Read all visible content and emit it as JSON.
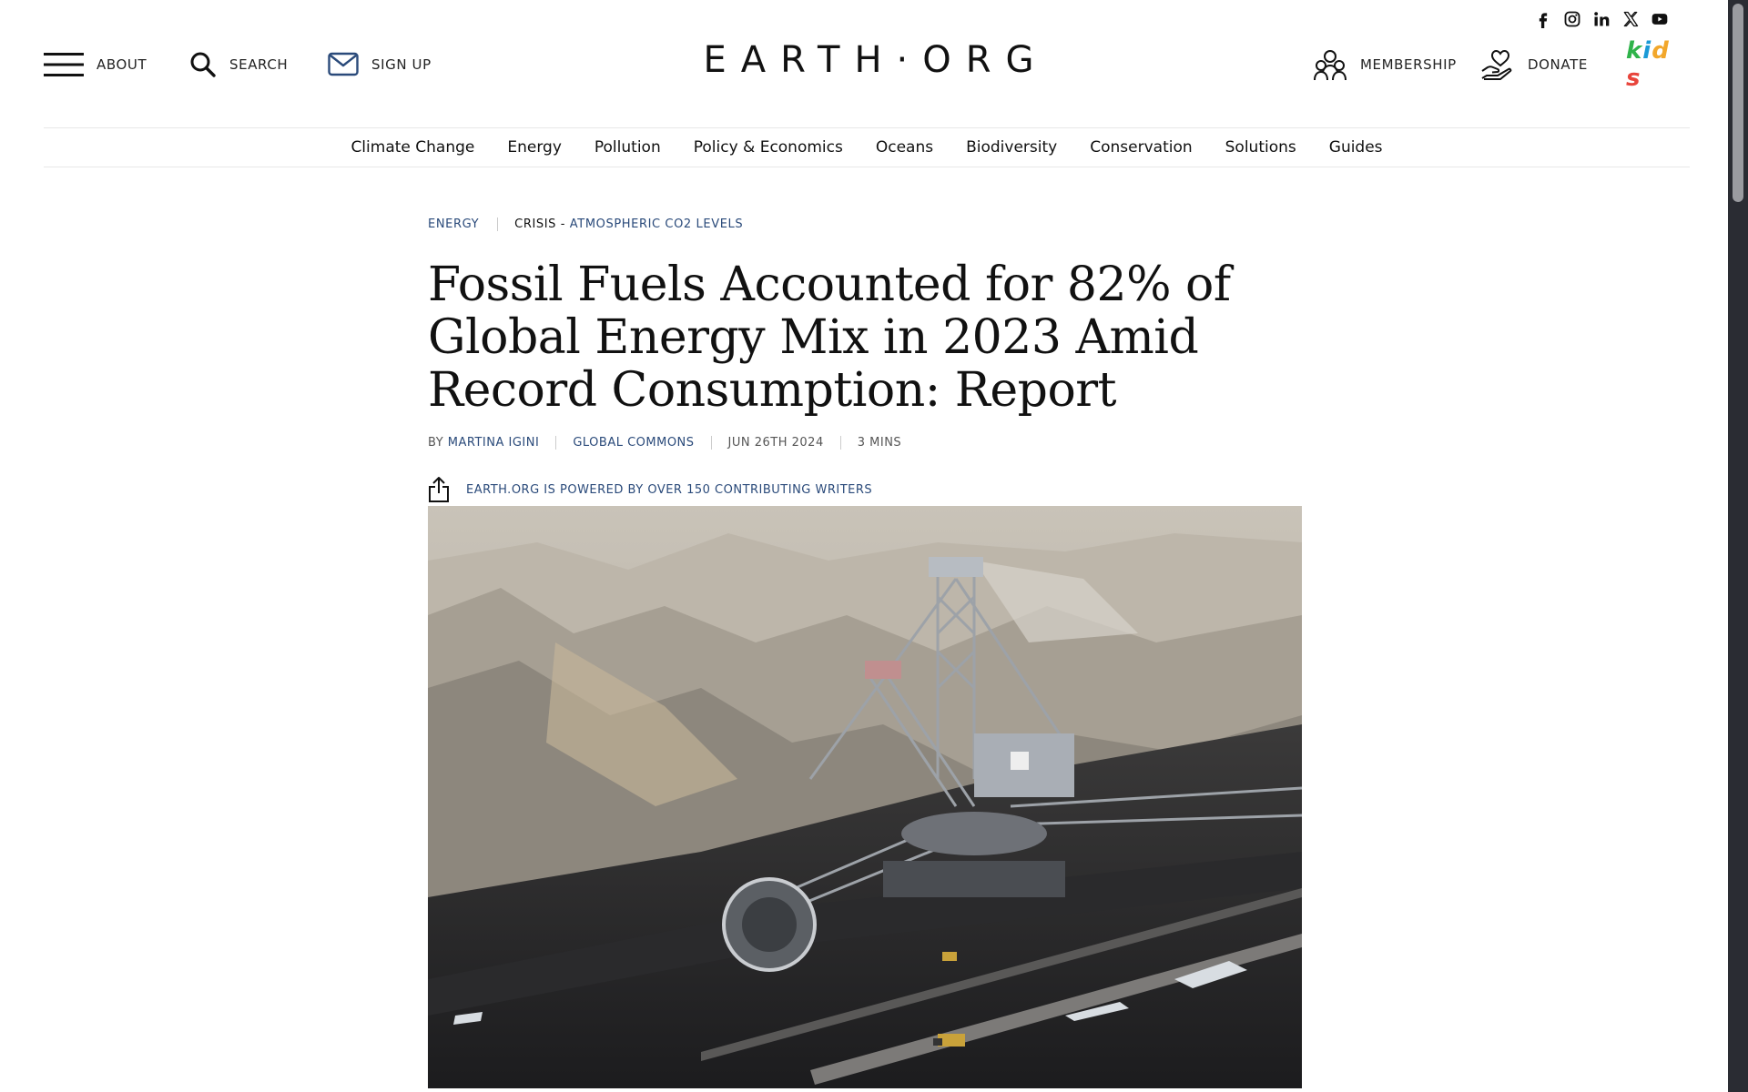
{
  "site": {
    "logo": "EARTH·ORG"
  },
  "header": {
    "about_label": "ABOUT",
    "search_label": "SEARCH",
    "signup_label": "SIGN UP",
    "membership_label": "MEMBERSHIP",
    "donate_label": "DONATE",
    "kids_label": [
      "k",
      "i",
      "d",
      "s"
    ],
    "kids_colors": [
      "#2fb34a",
      "#1a9ad6",
      "#f2a72b",
      "#e8453c"
    ]
  },
  "social": [
    "facebook-icon",
    "instagram-icon",
    "linkedin-icon",
    "x-icon",
    "youtube-icon"
  ],
  "nav": {
    "items": [
      "Climate Change",
      "Energy",
      "Pollution",
      "Policy & Economics",
      "Oceans",
      "Biodiversity",
      "Conservation",
      "Solutions",
      "Guides"
    ]
  },
  "article": {
    "category": "ENERGY",
    "crisis_prefix": "CRISIS - ",
    "crisis": "ATMOSPHERIC CO2 LEVELS",
    "title": "Fossil Fuels Accounted for 82% of Global Energy Mix in 2023 Amid Record Consumption: Report",
    "by_prefix": "BY ",
    "author": "MARTINA IGINI",
    "section": "GLOBAL COMMONS",
    "date": "JUN 26TH 2024",
    "read_time": "3 MINS",
    "powered_text": "EARTH.ORG IS POWERED BY OVER 150 CONTRIBUTING WRITERS"
  },
  "colors": {
    "accent_blue": "#2a4a7a",
    "text": "#111111",
    "scrollbar_track": "#2a2c33"
  }
}
